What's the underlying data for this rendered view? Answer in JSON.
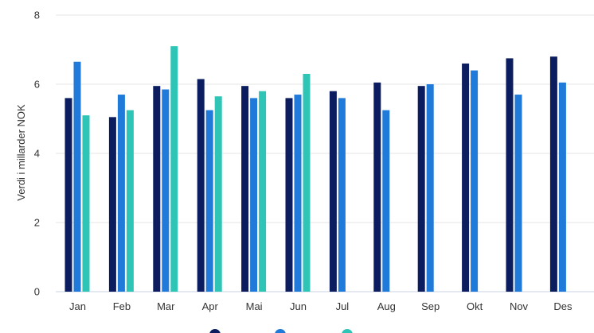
{
  "chart_data": {
    "type": "bar",
    "title": "",
    "xlabel": "",
    "ylabel": "Verdi i millarder NOK",
    "ylim": [
      0,
      8
    ],
    "yticks": [
      0,
      2,
      4,
      6,
      8
    ],
    "grid": true,
    "legend_position": "bottom",
    "categories": [
      "Jan",
      "Feb",
      "Mar",
      "Apr",
      "Mai",
      "Jun",
      "Jul",
      "Aug",
      "Sep",
      "Okt",
      "Nov",
      "Des"
    ],
    "series": [
      {
        "color": "#0b1d5e",
        "values": [
          5.6,
          5.05,
          5.95,
          6.15,
          5.95,
          5.6,
          5.8,
          6.05,
          5.95,
          6.6,
          6.75,
          6.8
        ]
      },
      {
        "color": "#1f7ad9",
        "values": [
          6.65,
          5.7,
          5.85,
          5.25,
          5.6,
          5.7,
          5.6,
          5.25,
          6.0,
          6.4,
          5.7,
          6.05
        ]
      },
      {
        "color": "#2ec4b6",
        "values": [
          5.1,
          5.25,
          7.1,
          5.65,
          5.8,
          6.3,
          null,
          null,
          null,
          null,
          null,
          null
        ]
      }
    ]
  }
}
